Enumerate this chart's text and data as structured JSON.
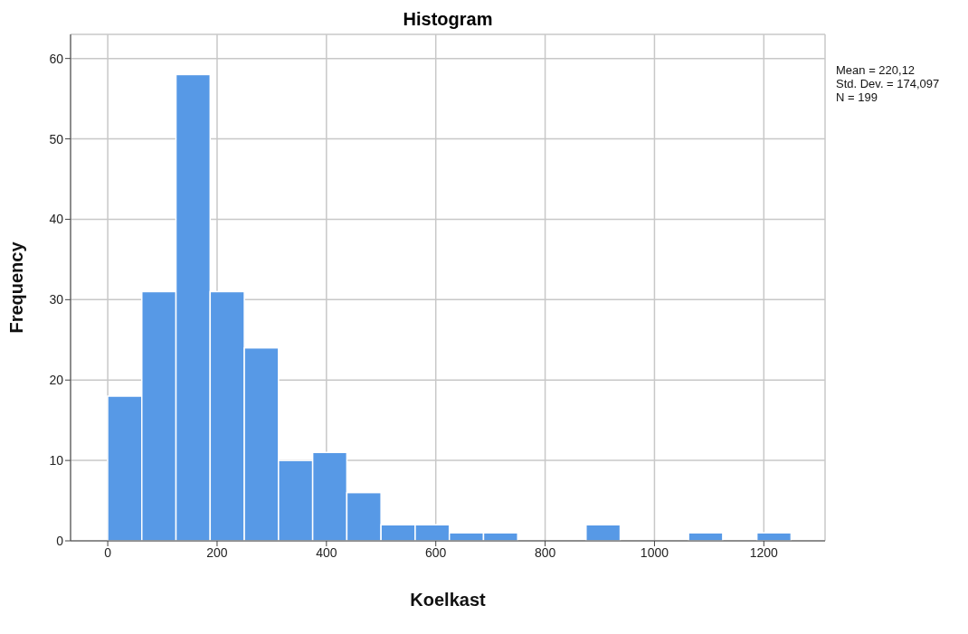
{
  "chart_data": {
    "type": "histogram",
    "title": "Histogram",
    "xlabel": "Koelkast",
    "ylabel": "Frequency",
    "bins": [
      0,
      62.5,
      125,
      187.5,
      250,
      312.5,
      375,
      437.5,
      500,
      562.5,
      625,
      687.5,
      750,
      812.5,
      875,
      937.5,
      1000,
      1062.5,
      1125,
      1187.5,
      1250
    ],
    "values": [
      18,
      31,
      58,
      31,
      24,
      10,
      11,
      6,
      2,
      2,
      1,
      1,
      0,
      0,
      2,
      0,
      0,
      1,
      0,
      1
    ],
    "color": "#5799e6",
    "xlim": [
      -68,
      1312
    ],
    "xticks": [
      0,
      200,
      400,
      600,
      800,
      1000,
      1200
    ],
    "ylim": [
      0,
      63
    ],
    "yticks": [
      0,
      10,
      20,
      30,
      40,
      50,
      60
    ],
    "grid": true,
    "annotations": [
      "Mean = 220,12",
      "Std. Dev. = 174,097",
      "N = 199"
    ]
  }
}
